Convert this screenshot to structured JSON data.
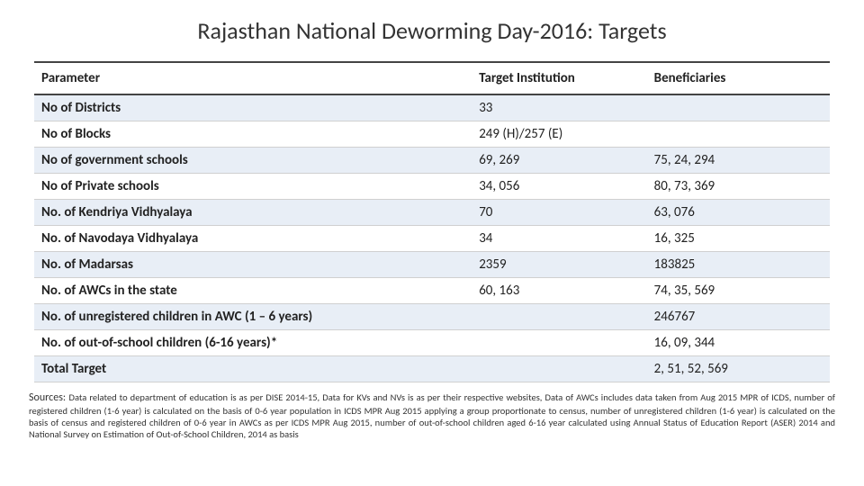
{
  "title": "Rajasthan National Deworming Day-2016: Targets",
  "table": {
    "headers": {
      "param": "Parameter",
      "inst": "Target Institution",
      "benef": "Beneficiaries"
    },
    "rows": [
      {
        "alt": true,
        "param": "No of Districts",
        "inst": "33",
        "benef": ""
      },
      {
        "alt": false,
        "param": "No of Blocks",
        "inst": "249 (H)/257 (E)",
        "benef": ""
      },
      {
        "alt": true,
        "param": "No of government schools",
        "inst": "69, 269",
        "benef": "75, 24, 294"
      },
      {
        "alt": false,
        "param": "No of Private schools",
        "inst": "34, 056",
        "benef": "80, 73, 369"
      },
      {
        "alt": true,
        "param": "No. of Kendriya Vidhyalaya",
        "inst": "70",
        "benef": "63, 076"
      },
      {
        "alt": false,
        "param": "No. of Navodaya Vidhyalaya",
        "inst": "34",
        "benef": "16, 325"
      },
      {
        "alt": true,
        "param": "No. of Madarsas",
        "inst": "2359",
        "benef": "183825"
      },
      {
        "alt": false,
        "param": "No. of AWCs in the state",
        "inst": "60, 163",
        "benef": "74, 35, 569"
      },
      {
        "alt": true,
        "param": "No. of unregistered children in AWC (1 – 6 years)",
        "inst": "",
        "benef": "246767"
      },
      {
        "alt": false,
        "param": "No. of out-of-school children (6-16 years)*",
        "inst": "",
        "benef": "16, 09, 344"
      },
      {
        "alt": true,
        "param": "Total Target",
        "inst": "",
        "benef": "2, 51, 52, 569"
      }
    ]
  },
  "sources_lead": "Sources: ",
  "sources_text": "Data related to department of education is as per DISE 2014-15, Data for KVs and NVs is as per their respective websites, Data of AWCs includes data taken from Aug 2015 MPR of ICDS, number of registered children (1-6 year) is calculated on the basis of 0-6 year population in ICDS MPR Aug 2015 applying a group proportionate to census, number of unregistered children (1-6 year) is calculated on the basis of census and registered children of 0-6 year in AWCs as per ICDS MPR Aug 2015, number of out-of-school children aged 6-16 year calculated using Annual Status of Education Report (ASER) 2014 and National Survey on Estimation of Out-of-School Children, 2014 as basis",
  "style": {
    "title_fontsize": 26,
    "body_fontsize": 15,
    "sources_fontsize": 10.5,
    "alt_row_bg": "#e8eef6",
    "border_color": "#d0d0d0",
    "header_border": "#444444",
    "text_color": "#222222",
    "background": "#ffffff"
  }
}
